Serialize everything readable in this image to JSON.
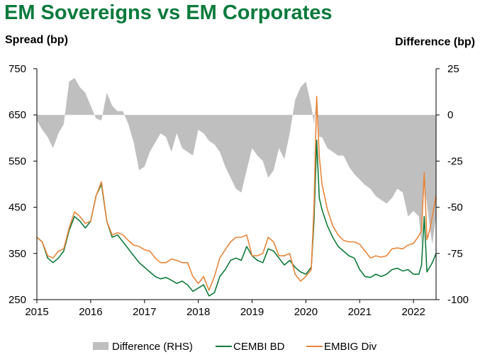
{
  "chart_data": {
    "type": "area+line",
    "title": "EM Sovereigns vs EM Corporates",
    "ylabel_left": "Spread (bp)",
    "ylabel_right": "Difference (bp)",
    "x_ticks": [
      "2015",
      "2016",
      "2017",
      "2018",
      "2019",
      "2020",
      "2021",
      "2022"
    ],
    "x_range": [
      2015.0,
      2022.42
    ],
    "ylim_left": [
      250,
      750
    ],
    "yticks_left": [
      "750",
      "650",
      "550",
      "450",
      "350",
      "250"
    ],
    "ylim_right": [
      -100,
      25
    ],
    "yticks_right": [
      "25",
      "0",
      "-25",
      "-50",
      "-75",
      "-100"
    ],
    "x": [
      2015.0,
      2015.1,
      2015.2,
      2015.3,
      2015.4,
      2015.5,
      2015.6,
      2015.7,
      2015.8,
      2015.9,
      2016.0,
      2016.1,
      2016.2,
      2016.3,
      2016.4,
      2016.5,
      2016.6,
      2016.7,
      2016.8,
      2016.9,
      2017.0,
      2017.1,
      2017.2,
      2017.3,
      2017.4,
      2017.5,
      2017.6,
      2017.7,
      2017.8,
      2017.9,
      2018.0,
      2018.1,
      2018.2,
      2018.3,
      2018.4,
      2018.5,
      2018.6,
      2018.7,
      2018.8,
      2018.9,
      2019.0,
      2019.1,
      2019.2,
      2019.3,
      2019.4,
      2019.5,
      2019.6,
      2019.7,
      2019.8,
      2019.9,
      2020.0,
      2020.1,
      2020.15,
      2020.2,
      2020.25,
      2020.3,
      2020.4,
      2020.5,
      2020.6,
      2020.7,
      2020.8,
      2020.9,
      2021.0,
      2021.1,
      2021.2,
      2021.3,
      2021.4,
      2021.5,
      2021.6,
      2021.7,
      2021.8,
      2021.9,
      2022.0,
      2022.1,
      2022.15,
      2022.2,
      2022.25,
      2022.3,
      2022.35,
      2022.42
    ],
    "series": [
      {
        "name": "Difference (RHS)",
        "type": "area",
        "axis": "right",
        "color": "#bfbfbf",
        "values": [
          -3,
          -8,
          -12,
          -18,
          -10,
          -5,
          18,
          20,
          15,
          12,
          5,
          -2,
          -3,
          12,
          5,
          2,
          2,
          -5,
          -15,
          -30,
          -28,
          -20,
          -15,
          -10,
          -12,
          -20,
          -10,
          -18,
          -20,
          -22,
          -8,
          -10,
          -14,
          -16,
          -20,
          -28,
          -34,
          -40,
          -42,
          -30,
          -18,
          -22,
          -25,
          -34,
          -30,
          -18,
          -24,
          -10,
          8,
          15,
          18,
          5,
          -5,
          10,
          -12,
          -12,
          -18,
          -20,
          -22,
          -22,
          -28,
          -32,
          -35,
          -38,
          -40,
          -44,
          -46,
          -48,
          -45,
          -40,
          -42,
          -55,
          -52,
          -55,
          -70,
          -38,
          -48,
          -60,
          -70,
          -55
        ]
      },
      {
        "name": "CEMBI BD",
        "type": "line",
        "axis": "left",
        "color": "#0e7a3a",
        "values": [
          385,
          375,
          340,
          330,
          340,
          355,
          400,
          430,
          420,
          405,
          420,
          475,
          500,
          420,
          385,
          390,
          375,
          360,
          345,
          330,
          320,
          310,
          300,
          295,
          298,
          292,
          285,
          290,
          282,
          268,
          275,
          282,
          258,
          265,
          300,
          315,
          335,
          340,
          335,
          365,
          345,
          335,
          330,
          360,
          355,
          340,
          325,
          335,
          320,
          310,
          305,
          320,
          420,
          595,
          470,
          445,
          410,
          385,
          365,
          355,
          345,
          340,
          315,
          300,
          298,
          305,
          300,
          305,
          315,
          318,
          312,
          315,
          305,
          305,
          325,
          430,
          310,
          320,
          330,
          350
        ]
      },
      {
        "name": "EMBIG Div",
        "type": "line",
        "axis": "left",
        "color": "#e8853a",
        "values": [
          385,
          375,
          345,
          340,
          355,
          360,
          405,
          440,
          430,
          415,
          420,
          475,
          505,
          420,
          390,
          395,
          390,
          378,
          368,
          365,
          358,
          355,
          340,
          330,
          330,
          338,
          335,
          330,
          330,
          300,
          285,
          300,
          270,
          300,
          340,
          358,
          375,
          385,
          385,
          390,
          345,
          345,
          350,
          385,
          375,
          345,
          345,
          350,
          305,
          290,
          300,
          315,
          450,
          690,
          560,
          500,
          445,
          410,
          390,
          378,
          375,
          375,
          370,
          355,
          340,
          345,
          342,
          345,
          360,
          362,
          360,
          368,
          372,
          388,
          400,
          525,
          380,
          400,
          430,
          475
        ]
      }
    ],
    "legend_position": "bottom",
    "legend": [
      "Difference (RHS)",
      "CEMBI BD",
      "EMBIG Div"
    ]
  }
}
